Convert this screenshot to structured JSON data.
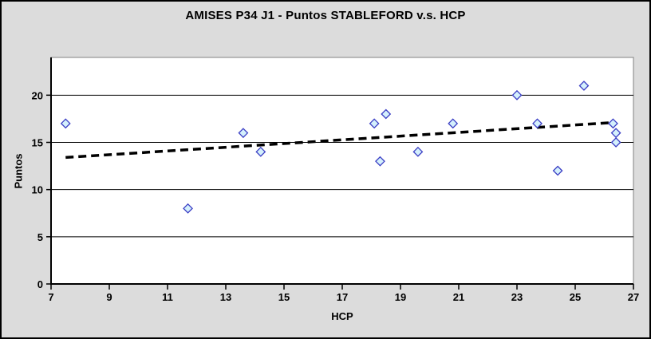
{
  "chart_data": {
    "type": "scatter",
    "title": "AMISES P34 J1 - Puntos STABLEFORD v.s. HCP",
    "xlabel": "HCP",
    "ylabel": "Puntos",
    "xlim": [
      7,
      27
    ],
    "ylim": [
      0,
      24
    ],
    "xticks": [
      7,
      9,
      11,
      13,
      15,
      17,
      19,
      21,
      23,
      25,
      27
    ],
    "yticks": [
      0,
      5,
      10,
      15,
      20
    ],
    "grid": "horizontal-only",
    "legend": "none",
    "series": [
      {
        "name": "Puntos STABLEFORD",
        "marker": "diamond",
        "points": [
          {
            "x": 7.5,
            "y": 17
          },
          {
            "x": 11.7,
            "y": 8
          },
          {
            "x": 13.6,
            "y": 16
          },
          {
            "x": 14.2,
            "y": 14
          },
          {
            "x": 18.1,
            "y": 17
          },
          {
            "x": 18.3,
            "y": 13
          },
          {
            "x": 18.5,
            "y": 18
          },
          {
            "x": 19.6,
            "y": 14
          },
          {
            "x": 20.8,
            "y": 17
          },
          {
            "x": 23.0,
            "y": 20
          },
          {
            "x": 23.7,
            "y": 17
          },
          {
            "x": 24.4,
            "y": 12
          },
          {
            "x": 25.3,
            "y": 21
          },
          {
            "x": 26.3,
            "y": 17
          },
          {
            "x": 26.4,
            "y": 16
          },
          {
            "x": 26.4,
            "y": 15
          }
        ]
      }
    ],
    "trendline": {
      "style": "dashed",
      "from": {
        "x": 7.5,
        "y": 13.4
      },
      "to": {
        "x": 26.3,
        "y": 17.1
      }
    },
    "colors": {
      "chart_background": "#dcdcdc",
      "plot_background": "#ffffff",
      "plot_border": "#808080",
      "axis": "#000000",
      "gridline": "#000000",
      "marker_fill": "#d4f0fc",
      "marker_stroke": "#3a3dc4",
      "trendline": "#000000",
      "text": "#000000"
    }
  }
}
